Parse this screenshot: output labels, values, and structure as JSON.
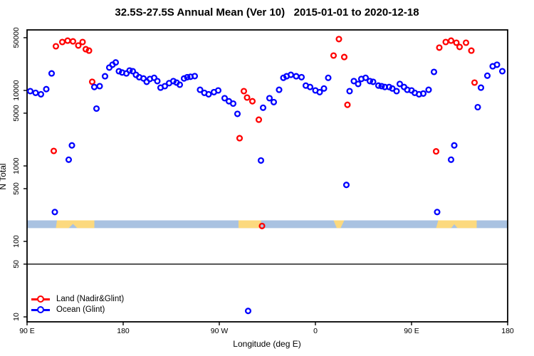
{
  "title": "32.5S-27.5S Annual Mean (Ver 10)   2015-01-01 to 2020-12-18",
  "chart_data": {
    "type": "scatter",
    "title": "32.5S-27.5S Annual Mean (Ver 10)   2015-01-01 to 2020-12-18",
    "xlabel": "Longitude (deg E)",
    "ylabel": "N Total",
    "x_axis": {
      "range": [
        0,
        450
      ],
      "note": "axis degrees from left edge; longitude wraps 90E>180>90W>0>90E>180",
      "ticks": [
        {
          "pos": 0,
          "label": "90 E"
        },
        {
          "pos": 90,
          "label": "180"
        },
        {
          "pos": 180,
          "label": "90 W"
        },
        {
          "pos": 270,
          "label": "0"
        },
        {
          "pos": 360,
          "label": "90 E"
        },
        {
          "pos": 450,
          "label": "180"
        }
      ]
    },
    "y_axis": {
      "scale": "log",
      "range": [
        8.6,
        63400
      ],
      "ticks": [
        50000,
        10000,
        5000,
        1000,
        500,
        100,
        50,
        10
      ]
    },
    "grid": "off",
    "legend_position": "bottom-left-inside",
    "reference_line": {
      "y": 50,
      "color": "#4d4d4d"
    },
    "surface_band": {
      "top_value": 190,
      "bottom_value": 150,
      "ocean_color": "#a9c2e1",
      "land_color": "#fcd97e",
      "land_polygons": [
        [
          [
            28,
            0
          ],
          [
            63,
            0
          ],
          [
            63,
            1
          ],
          [
            47,
            1
          ],
          [
            43,
            0.45
          ],
          [
            39,
            1
          ],
          [
            27,
            1
          ]
        ],
        [
          [
            198,
            0
          ],
          [
            219,
            0
          ],
          [
            219,
            1
          ],
          [
            198,
            1
          ]
        ],
        [
          [
            287,
            0
          ],
          [
            297,
            0
          ],
          [
            293.5,
            1
          ],
          [
            290,
            1
          ]
        ],
        [
          [
            385,
            0
          ],
          [
            421,
            0
          ],
          [
            421,
            1
          ],
          [
            403,
            1
          ],
          [
            400,
            0.5
          ],
          [
            397,
            1
          ],
          [
            383,
            1
          ]
        ]
      ]
    },
    "series": [
      {
        "name": "Land (Nadir&Glint)",
        "color": "#ff0000",
        "points": [
          [
            25,
            1580
          ],
          [
            27,
            38500
          ],
          [
            33,
            43800
          ],
          [
            38,
            45700
          ],
          [
            43,
            44700
          ],
          [
            48,
            39400
          ],
          [
            52,
            43800
          ],
          [
            55,
            35200
          ],
          [
            58,
            33700
          ],
          [
            61,
            13000
          ],
          [
            199,
            2330
          ],
          [
            203,
            9800
          ],
          [
            206,
            8050
          ],
          [
            211,
            7200
          ],
          [
            217,
            4100
          ],
          [
            220,
            160
          ],
          [
            287,
            29000
          ],
          [
            292,
            47900
          ],
          [
            297,
            27700
          ],
          [
            300,
            6450
          ],
          [
            383,
            1560
          ],
          [
            386,
            36900
          ],
          [
            392,
            43800
          ],
          [
            397,
            45700
          ],
          [
            402,
            42900
          ],
          [
            405,
            37700
          ],
          [
            411,
            42900
          ],
          [
            416,
            33700
          ],
          [
            419,
            12700
          ]
        ]
      },
      {
        "name": "Ocean (Glint)",
        "color": "#0000ff",
        "points": [
          [
            3,
            9800
          ],
          [
            8,
            9300
          ],
          [
            13,
            8900
          ],
          [
            18,
            10400
          ],
          [
            23,
            16800
          ],
          [
            26,
            245
          ],
          [
            39,
            1210
          ],
          [
            42,
            1870
          ],
          [
            63,
            11100
          ],
          [
            65,
            5750
          ],
          [
            68,
            11400
          ],
          [
            73,
            15400
          ],
          [
            77,
            20100
          ],
          [
            80,
            21900
          ],
          [
            83,
            23500
          ],
          [
            86,
            18000
          ],
          [
            89,
            17300
          ],
          [
            93,
            16800
          ],
          [
            96,
            18400
          ],
          [
            99,
            18000
          ],
          [
            102,
            16100
          ],
          [
            105,
            15000
          ],
          [
            109,
            14400
          ],
          [
            112,
            13000
          ],
          [
            115,
            14200
          ],
          [
            119,
            14700
          ],
          [
            122,
            13300
          ],
          [
            125,
            10900
          ],
          [
            129,
            11400
          ],
          [
            133,
            12500
          ],
          [
            137,
            13300
          ],
          [
            140,
            12700
          ],
          [
            143,
            11900
          ],
          [
            147,
            14400
          ],
          [
            150,
            15000
          ],
          [
            153,
            15200
          ],
          [
            157,
            15500
          ],
          [
            162,
            10200
          ],
          [
            166,
            9300
          ],
          [
            170,
            8900
          ],
          [
            175,
            9500
          ],
          [
            179,
            10000
          ],
          [
            185,
            7900
          ],
          [
            189,
            7200
          ],
          [
            193,
            6700
          ],
          [
            197,
            4900
          ],
          [
            207,
            12
          ],
          [
            219,
            1180
          ],
          [
            221,
            5900
          ],
          [
            227,
            7900
          ],
          [
            231,
            7000
          ],
          [
            236,
            10200
          ],
          [
            240,
            14700
          ],
          [
            243,
            15400
          ],
          [
            247,
            16100
          ],
          [
            252,
            15400
          ],
          [
            257,
            15000
          ],
          [
            261,
            11600
          ],
          [
            265,
            11100
          ],
          [
            270,
            10000
          ],
          [
            274,
            9500
          ],
          [
            278,
            10600
          ],
          [
            282,
            14700
          ],
          [
            299,
            560
          ],
          [
            302,
            9800
          ],
          [
            306,
            13300
          ],
          [
            310,
            12200
          ],
          [
            313,
            14200
          ],
          [
            317,
            14700
          ],
          [
            321,
            13300
          ],
          [
            324,
            13000
          ],
          [
            329,
            11600
          ],
          [
            332,
            11400
          ],
          [
            335,
            11100
          ],
          [
            339,
            11100
          ],
          [
            342,
            10600
          ],
          [
            346,
            9800
          ],
          [
            349,
            12200
          ],
          [
            353,
            11100
          ],
          [
            356,
            10200
          ],
          [
            360,
            10000
          ],
          [
            363,
            9300
          ],
          [
            367,
            8900
          ],
          [
            371,
            9100
          ],
          [
            376,
            10200
          ],
          [
            381,
            17600
          ],
          [
            384,
            245
          ],
          [
            397,
            1210
          ],
          [
            400,
            1870
          ],
          [
            422,
            6000
          ],
          [
            425,
            10900
          ],
          [
            431,
            15700
          ],
          [
            436,
            20900
          ],
          [
            440,
            21900
          ],
          [
            445,
            18000
          ]
        ]
      }
    ]
  },
  "legend": {
    "land_label": "Land (Nadir&Glint)",
    "ocean_label": "Ocean (Glint)",
    "land_color": "#ff0000",
    "ocean_color": "#0000ff"
  }
}
